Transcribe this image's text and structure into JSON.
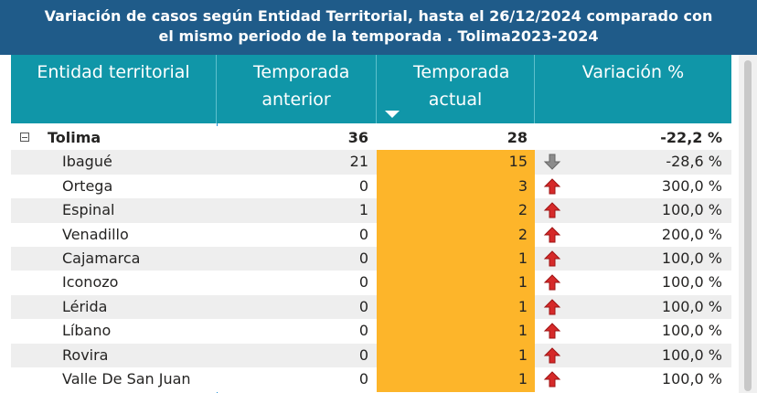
{
  "header": {
    "title": "Variación de casos según Entidad Territorial, hasta el 26/12/2024 comparado con el mismo periodo de la temporada . Tolima2023-2024"
  },
  "table": {
    "columns": [
      "Entidad territorial",
      "Temporada anterior",
      "Temporada actual",
      "Variación %"
    ],
    "rows": [
      [
        "Tolima",
        36,
        28,
        "-22,2 %"
      ],
      [
        "Ibagué",
        21,
        15,
        "-28,6 %"
      ],
      [
        "Ortega",
        0,
        3,
        "300,0 %"
      ],
      [
        "Espinal",
        1,
        2,
        "100,0 %"
      ],
      [
        "Venadillo",
        0,
        2,
        "200,0 %"
      ],
      [
        "Cajamarca",
        0,
        1,
        "100,0 %"
      ],
      [
        "Iconozo",
        0,
        1,
        "100,0 %"
      ],
      [
        "Lérida",
        0,
        1,
        "100,0 %"
      ],
      [
        "Líbano",
        0,
        1,
        "100,0 %"
      ],
      [
        "Rovira",
        0,
        1,
        "100,0 %"
      ],
      [
        "Valle De San Juan",
        0,
        1,
        "100,0 %"
      ]
    ]
  }
}
